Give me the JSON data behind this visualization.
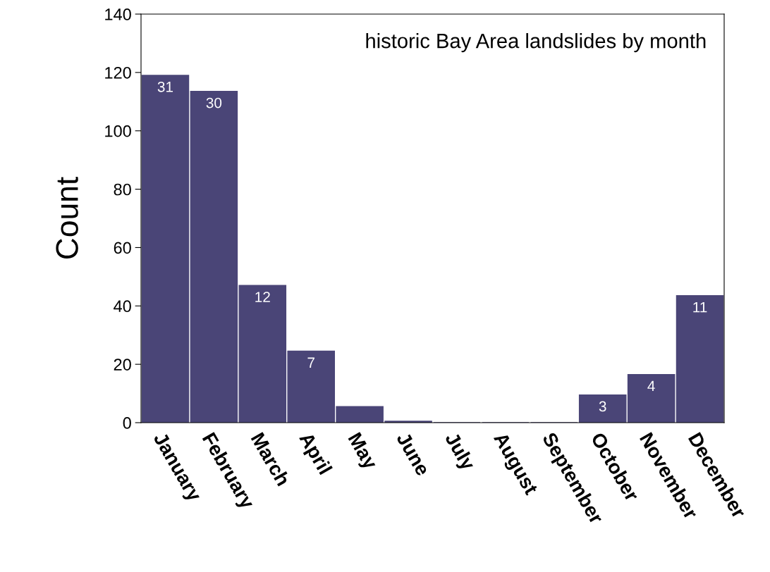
{
  "chart_data": {
    "type": "bar",
    "title": "historic Bay Area landslides by month",
    "ylabel": "Count",
    "categories": [
      "January",
      "February",
      "March",
      "April",
      "May",
      "June",
      "July",
      "August",
      "September",
      "October",
      "November",
      "December"
    ],
    "values": [
      119,
      113.5,
      47,
      24.5,
      5.5,
      0.5,
      0,
      0,
      0,
      9.5,
      16.5,
      43.5
    ],
    "annotations": [
      {
        "text": "31",
        "x": "January",
        "y": 119
      },
      {
        "text": "30",
        "x": "February",
        "y": 113.5
      },
      {
        "text": "12",
        "x": "March",
        "y": 47
      },
      {
        "text": "7",
        "x": "April",
        "y": 24.5
      },
      {
        "text": "3",
        "x": "October",
        "y": 9.5
      },
      {
        "text": "4",
        "x": "November",
        "y": 16.5
      },
      {
        "text": "11",
        "x": "December",
        "y": 43.5
      }
    ],
    "color": "#4a4577",
    "ylim": [
      0,
      140
    ],
    "yticks": [
      0,
      20,
      40,
      60,
      80,
      100,
      120,
      140
    ],
    "grid": false,
    "legend": false
  }
}
